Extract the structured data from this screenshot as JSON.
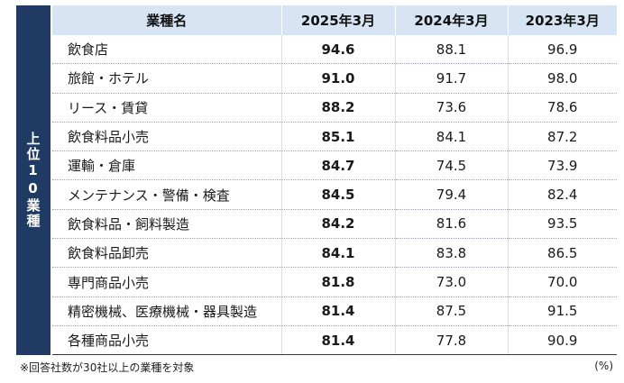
{
  "side_label": "上位10業種",
  "headers": [
    "業種名",
    "2025年3月",
    "2024年3月",
    "2023年3月"
  ],
  "rows": [
    {
      "name": "飲食店",
      "y2025": "94.6",
      "y2024": "88.1",
      "y2023": "96.9"
    },
    {
      "name": "旅館・ホテル",
      "y2025": "91.0",
      "y2024": "91.7",
      "y2023": "98.0"
    },
    {
      "name": "リース・賃貸",
      "y2025": "88.2",
      "y2024": "73.6",
      "y2023": "78.6"
    },
    {
      "name": "飲食料品小売",
      "y2025": "85.1",
      "y2024": "84.1",
      "y2023": "87.2"
    },
    {
      "name": "運輸・倉庫",
      "y2025": "84.7",
      "y2024": "74.5",
      "y2023": "73.9"
    },
    {
      "name": "メンテナンス・警備・検査",
      "y2025": "84.5",
      "y2024": "79.4",
      "y2023": "82.4"
    },
    {
      "name": "飲食料品・飼料製造",
      "y2025": "84.2",
      "y2024": "81.6",
      "y2023": "93.5"
    },
    {
      "name": "飲食料品卸売",
      "y2025": "84.1",
      "y2024": "83.8",
      "y2023": "86.5"
    },
    {
      "name": "専門商品小売",
      "y2025": "81.8",
      "y2024": "73.0",
      "y2023": "70.0"
    },
    {
      "name": "精密機械、医療機械・器具製造",
      "y2025": "81.4",
      "y2024": "87.5",
      "y2023": "91.5"
    },
    {
      "name": "各種商品小売",
      "y2025": "81.4",
      "y2024": "77.8",
      "y2023": "90.9"
    }
  ],
  "footnote": "※回答社数が30社以上の業種を対象",
  "unit": "(%)",
  "colors": {
    "side_bg": "#1f3a63",
    "header_bg": "#d6e4f3"
  }
}
